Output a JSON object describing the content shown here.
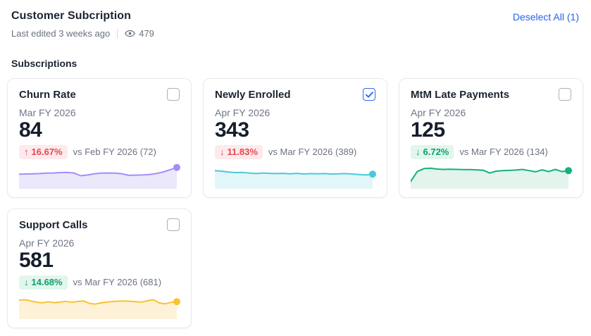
{
  "header": {
    "title": "Customer Subcription",
    "last_edited": "Last edited 3 weeks ago",
    "views": "479",
    "deselect_label": "Deselect All (1)"
  },
  "section": {
    "title": "Subscriptions"
  },
  "colors": {
    "link_blue": "#2563eb",
    "checkbox_checked": "#2e6be6",
    "badge_red_bg": "#fdeaec",
    "badge_red_text": "#e5484d",
    "badge_green_bg": "#e2f6eb",
    "badge_green_text": "#0e9f6e",
    "muted_text": "#6b7280",
    "card_border": "#e7e9ee"
  },
  "cards": [
    {
      "title": "Churn Rate",
      "period": "Mar FY 2026",
      "value": "84",
      "delta": "16.67%",
      "delta_direction": "up",
      "delta_color": "red",
      "comparison": "vs Feb FY 2026 (72)",
      "checked": false,
      "line_color": "#a78bfa",
      "fill_color": "#ece8fb",
      "spark": [
        58,
        57,
        56,
        55,
        53,
        52,
        50,
        49,
        52,
        66,
        62,
        56,
        53,
        52,
        53,
        56,
        64,
        63,
        62,
        60,
        55,
        47,
        36,
        24
      ]
    },
    {
      "title": "Newly Enrolled",
      "period": "Apr FY 2026",
      "value": "343",
      "delta": "11.83%",
      "delta_direction": "down",
      "delta_color": "red",
      "comparison": "vs Mar FY 2026 (389)",
      "checked": true,
      "line_color": "#4cc8da",
      "fill_color": "#e2f6f9",
      "spark": [
        40,
        43,
        47,
        50,
        49,
        52,
        55,
        52,
        54,
        55,
        54,
        56,
        54,
        57,
        55,
        56,
        55,
        57,
        56,
        55,
        57,
        60,
        62,
        58
      ]
    },
    {
      "title": "MtM Late Payments",
      "period": "Apr FY 2026",
      "value": "125",
      "delta": "6.72%",
      "delta_direction": "down",
      "delta_color": "green",
      "comparison": "vs Mar FY 2026 (134)",
      "checked": false,
      "line_color": "#12b377",
      "fill_color": "#e3f4ec",
      "spark": [
        95,
        45,
        30,
        28,
        32,
        34,
        33,
        34,
        35,
        35,
        36,
        38,
        52,
        43,
        40,
        39,
        37,
        34,
        40,
        46,
        36,
        45,
        34,
        45,
        40
      ]
    },
    {
      "title": "Support Calls",
      "period": "Apr FY 2026",
      "value": "581",
      "delta": "14.68%",
      "delta_direction": "down",
      "delta_color": "green",
      "comparison": "vs Mar FY 2026 (681)",
      "checked": false,
      "line_color": "#fbc231",
      "fill_color": "#fdf2d7",
      "spark": [
        36,
        34,
        40,
        46,
        50,
        44,
        49,
        46,
        42,
        47,
        43,
        40,
        52,
        56,
        50,
        46,
        43,
        41,
        40,
        42,
        44,
        46,
        39,
        34,
        50,
        55,
        47,
        44
      ]
    }
  ],
  "chart_data": [
    {
      "type": "line",
      "title": "Churn Rate sparkline",
      "last_value": 84,
      "prev_value": 72
    },
    {
      "type": "line",
      "title": "Newly Enrolled sparkline",
      "last_value": 343,
      "prev_value": 389
    },
    {
      "type": "line",
      "title": "MtM Late Payments sparkline",
      "last_value": 125,
      "prev_value": 134
    },
    {
      "type": "line",
      "title": "Support Calls sparkline",
      "last_value": 581,
      "prev_value": 681
    }
  ]
}
